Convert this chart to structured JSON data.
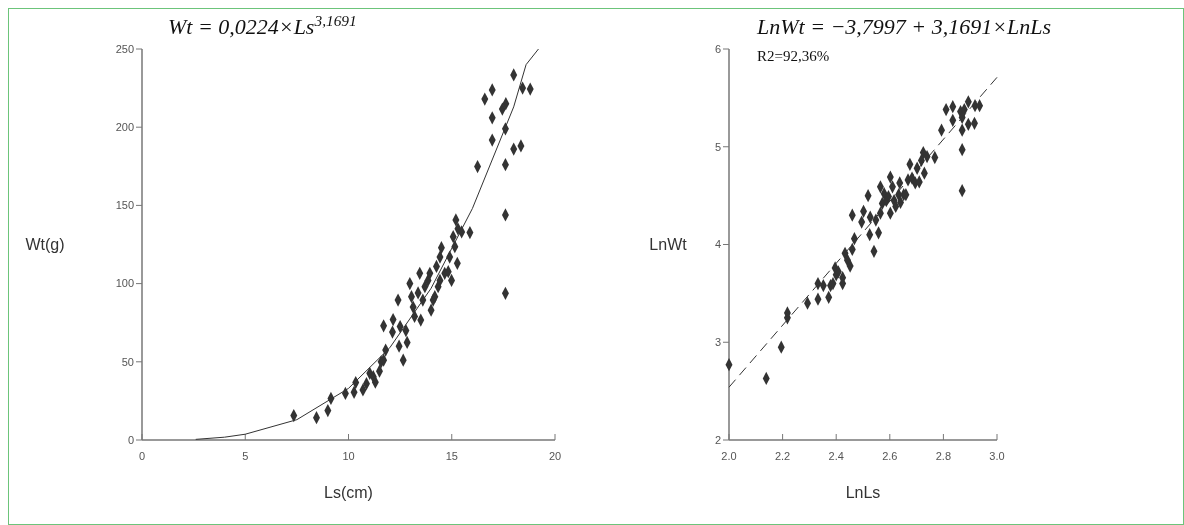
{
  "chart_data": [
    {
      "type": "scatter",
      "xlabel": "Ls(cm)",
      "ylabel": "Wt(g)",
      "xlim": [
        0,
        20
      ],
      "ylim": [
        0,
        250
      ],
      "xticks": [
        0,
        5,
        10,
        15,
        20
      ],
      "yticks": [
        0,
        50,
        100,
        150,
        200,
        250
      ],
      "grid": false,
      "annotations": [
        "Wt = 0,0224×Ls$^{3,1691}$"
      ],
      "series": [
        {
          "marker": "diamond",
          "color": "#333333",
          "x": [
            7.35,
            8.45,
            9.0,
            9.15,
            9.85,
            10.27,
            10.35,
            10.7,
            10.87,
            11.03,
            11.3,
            11.2,
            11.5,
            11.58,
            11.7,
            11.8,
            11.7,
            12.13,
            12.16,
            12.4,
            12.45,
            12.65,
            12.5,
            12.84,
            12.78,
            12.97,
            13.05,
            13.13,
            13.2,
            13.37,
            13.45,
            13.5,
            13.6,
            13.7,
            13.85,
            13.94,
            14.0,
            14.1,
            14.18,
            14.34,
            14.43,
            14.26,
            14.43,
            14.5,
            14.66,
            14.83,
            14.9,
            14.99,
            15.07,
            15.15,
            15.2,
            15.27,
            15.3,
            15.48,
            15.88,
            16.25,
            16.6,
            16.96,
            16.96,
            16.96,
            17.45,
            17.62,
            17.6,
            17.6,
            17.6,
            17.6,
            18.0,
            18.0,
            18.35,
            18.43,
            18.8
          ],
          "values": [
            15.6,
            14.3,
            18.8,
            26.6,
            29.8,
            30.5,
            36.7,
            32,
            36,
            42.6,
            37,
            40.5,
            44,
            50,
            51,
            57.5,
            73,
            69,
            77,
            89.5,
            60,
            51,
            72.5,
            62.4,
            70,
            100,
            91.6,
            85,
            79,
            94,
            106.6,
            76.7,
            89.5,
            98,
            102,
            106.6,
            83,
            89.5,
            91.6,
            98,
            102,
            111,
            117,
            123,
            106.6,
            107.6,
            117,
            102,
            130,
            123.6,
            140.7,
            113,
            135,
            133,
            132.6,
            174.8,
            218,
            223.8,
            206,
            191.8,
            211.6,
            215,
            199,
            176,
            143.9,
            93.8,
            233.4,
            186,
            188,
            225,
            224.4
          ]
        },
        {
          "type": "line",
          "color": "#333333",
          "line_style": "solid",
          "x": [
            2.6,
            4,
            5,
            7.5,
            10,
            12,
            14,
            16,
            18,
            18.6,
            19.2
          ],
          "values": [
            0.4,
            1.8,
            3.7,
            13,
            33,
            59,
            97,
            148,
            213,
            240,
            250
          ]
        }
      ]
    },
    {
      "type": "scatter",
      "xlabel": "LnLs",
      "ylabel": "LnWt",
      "xlim": [
        2.0,
        3.0
      ],
      "ylim": [
        2,
        6
      ],
      "xticks": [
        {
          "value": 2.0,
          "label": "2.0"
        },
        2.2,
        2.4,
        2.6,
        2.8,
        {
          "value": 3.0,
          "label": "3.0"
        }
      ],
      "yticks": [
        2,
        3,
        4,
        5,
        6
      ],
      "grid": false,
      "annotations": [
        "LnWt = −3,7997 + 3,1691×LnLs",
        "R2=92,36%"
      ],
      "series": [
        {
          "marker": "diamond",
          "color": "#333333",
          "x": [
            2.0,
            2.139,
            2.195,
            2.218,
            2.218,
            2.293,
            2.332,
            2.332,
            2.352,
            2.372,
            2.379,
            2.388,
            2.396,
            2.4,
            2.408,
            2.424,
            2.424,
            2.433,
            2.442,
            2.452,
            2.46,
            2.46,
            2.468,
            2.495,
            2.502,
            2.519,
            2.525,
            2.527,
            2.541,
            2.548,
            2.558,
            2.565,
            2.565,
            2.572,
            2.579,
            2.587,
            2.595,
            2.602,
            2.602,
            2.61,
            2.616,
            2.622,
            2.633,
            2.637,
            2.64,
            2.652,
            2.66,
            2.668,
            2.675,
            2.683,
            2.695,
            2.702,
            2.71,
            2.718,
            2.725,
            2.729,
            2.739,
            2.768,
            2.793,
            2.81,
            2.835,
            2.835,
            2.864,
            2.87,
            2.87,
            2.87,
            2.87,
            2.878,
            2.893,
            2.893,
            2.916,
            2.918,
            2.935
          ],
          "values": [
            2.77,
            2.63,
            2.95,
            3.3,
            3.25,
            3.4,
            3.44,
            3.6,
            3.58,
            3.46,
            3.58,
            3.6,
            3.76,
            3.69,
            3.72,
            3.66,
            3.6,
            3.91,
            3.84,
            3.78,
            3.95,
            4.3,
            4.06,
            4.23,
            4.34,
            4.5,
            4.1,
            4.28,
            3.93,
            4.25,
            4.12,
            4.32,
            4.59,
            4.42,
            4.52,
            4.45,
            4.49,
            4.69,
            4.32,
            4.59,
            4.45,
            4.39,
            4.51,
            4.63,
            4.43,
            4.51,
            4.51,
            4.66,
            4.82,
            4.68,
            4.63,
            4.78,
            4.64,
            4.86,
            4.94,
            4.73,
            4.9,
            4.89,
            5.17,
            5.38,
            5.41,
            5.27,
            5.36,
            5.3,
            5.17,
            4.97,
            4.55,
            5.38,
            5.46,
            5.23,
            5.24,
            5.42,
            5.42
          ]
        },
        {
          "type": "line",
          "color": "#333333",
          "line_style": "dashed",
          "x": [
            2.0,
            3.0
          ],
          "values": [
            2.54,
            5.71
          ]
        }
      ]
    }
  ]
}
